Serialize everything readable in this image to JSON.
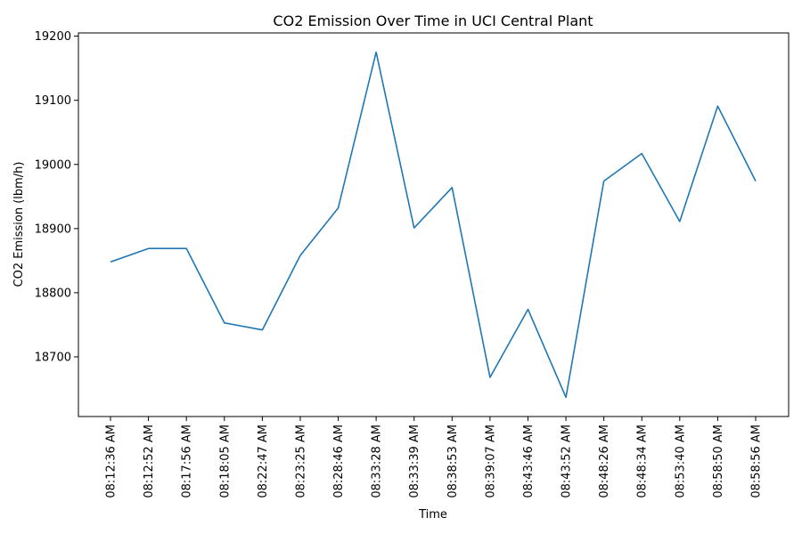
{
  "chart_data": {
    "type": "line",
    "title": "CO2 Emission Over Time in UCI Central Plant",
    "xlabel": "Time",
    "ylabel": "CO2 Emission (lbm/h)",
    "categories": [
      "08:12:36 AM",
      "08:12:52 AM",
      "08:17:56 AM",
      "08:18:05 AM",
      "08:22:47 AM",
      "08:23:25 AM",
      "08:28:46 AM",
      "08:33:28 AM",
      "08:33:39 AM",
      "08:38:53 AM",
      "08:39:07 AM",
      "08:43:46 AM",
      "08:43:52 AM",
      "08:48:26 AM",
      "08:48:34 AM",
      "08:53:40 AM",
      "08:58:50 AM",
      "08:58:56 AM"
    ],
    "series": [
      {
        "values": [
          18848,
          18869,
          18869,
          18753,
          18742,
          18858,
          18932,
          19175,
          18901,
          18964,
          18668,
          18774,
          18637,
          18974,
          19017,
          18911,
          19091,
          18974
        ],
        "color": "#1f77b4"
      }
    ],
    "yticks": [
      18700,
      18800,
      18900,
      19000,
      19100,
      19200
    ],
    "ylim": [
      18607,
      19205
    ],
    "grid": false,
    "legend": false,
    "x_tick_rotation": 90
  }
}
